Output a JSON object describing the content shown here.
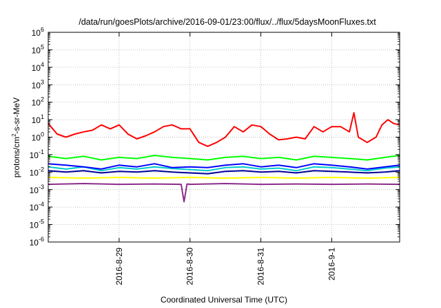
{
  "chart_data": {
    "type": "line",
    "title": "/data/run/goesPlots/archive/2016-09-01/23:00/flux/../flux/5daysMoonFluxes.txt",
    "xlabel": "Coordinated Universal Time (UTC)",
    "ylabel": {
      "base": "protons/cm",
      "sup": "2",
      "rest": "-s-sr-MeV"
    },
    "yscale": "log",
    "ylim_exp": [
      -6,
      6
    ],
    "ytick_base": "10",
    "yticks_exp": [
      "-6",
      "-5",
      "-4",
      "-3",
      "-2",
      "-1",
      "0",
      "1",
      "2",
      "3",
      "4",
      "5",
      "6"
    ],
    "xlim": [
      "2016-08-28T00:00",
      "2016-09-01T23:00"
    ],
    "xticks": [
      {
        "t": "2016-08-29T00:00",
        "label": "2016-8-29"
      },
      {
        "t": "2016-08-30T00:00",
        "label": "2016-8-30"
      },
      {
        "t": "2016-08-31T00:00",
        "label": "2016-8-31"
      },
      {
        "t": "2016-09-01T00:00",
        "label": "2016-9-1"
      }
    ],
    "grid": true,
    "series": [
      {
        "color": "#ff0000",
        "x": [
          "2016-08-28T00:00",
          "2016-08-28T03:00",
          "2016-08-28T06:00",
          "2016-08-28T09:00",
          "2016-08-28T12:00",
          "2016-08-28T15:00",
          "2016-08-28T18:00",
          "2016-08-28T21:00",
          "2016-08-29T00:00",
          "2016-08-29T03:00",
          "2016-08-29T06:00",
          "2016-08-29T09:00",
          "2016-08-29T12:00",
          "2016-08-29T15:00",
          "2016-08-29T18:00",
          "2016-08-29T21:00",
          "2016-08-30T00:00",
          "2016-08-30T03:00",
          "2016-08-30T06:00",
          "2016-08-30T09:00",
          "2016-08-30T12:00",
          "2016-08-30T15:00",
          "2016-08-30T18:00",
          "2016-08-30T21:00",
          "2016-08-31T00:00",
          "2016-08-31T03:00",
          "2016-08-31T06:00",
          "2016-08-31T09:00",
          "2016-08-31T12:00",
          "2016-08-31T15:00",
          "2016-08-31T18:00",
          "2016-08-31T21:00",
          "2016-09-01T00:00",
          "2016-09-01T03:00",
          "2016-09-01T06:00",
          "2016-09-01T07:30",
          "2016-09-01T09:00",
          "2016-09-01T12:00",
          "2016-09-01T15:00",
          "2016-09-01T17:00",
          "2016-09-01T19:00",
          "2016-09-01T21:00",
          "2016-09-01T23:00"
        ],
        "values": [
          6,
          1.5,
          1,
          1.5,
          2,
          2.5,
          5,
          3,
          5,
          1.5,
          0.8,
          1.2,
          2,
          4,
          5,
          3,
          3,
          0.5,
          0.3,
          0.5,
          1,
          4,
          2,
          5,
          4,
          1.5,
          0.7,
          0.8,
          1,
          0.8,
          4,
          2,
          4,
          4,
          2,
          25,
          1,
          0.5,
          1,
          5,
          10,
          6,
          5
        ]
      },
      {
        "color": "#00ff00",
        "x": [
          "2016-08-28T00:00",
          "2016-08-28T06:00",
          "2016-08-28T12:00",
          "2016-08-28T18:00",
          "2016-08-29T00:00",
          "2016-08-29T06:00",
          "2016-08-29T12:00",
          "2016-08-29T18:00",
          "2016-08-30T00:00",
          "2016-08-30T06:00",
          "2016-08-30T12:00",
          "2016-08-30T18:00",
          "2016-08-31T00:00",
          "2016-08-31T06:00",
          "2016-08-31T12:00",
          "2016-08-31T18:00",
          "2016-09-01T00:00",
          "2016-09-01T06:00",
          "2016-09-01T12:00",
          "2016-09-01T18:00",
          "2016-09-01T23:00"
        ],
        "values": [
          0.08,
          0.06,
          0.08,
          0.05,
          0.07,
          0.06,
          0.09,
          0.07,
          0.06,
          0.05,
          0.07,
          0.08,
          0.06,
          0.07,
          0.05,
          0.08,
          0.07,
          0.06,
          0.05,
          0.07,
          0.09
        ]
      },
      {
        "color": "#00cccc",
        "x": [
          "2016-08-28T00:00",
          "2016-08-28T06:00",
          "2016-08-28T12:00",
          "2016-08-28T18:00",
          "2016-08-29T00:00",
          "2016-08-29T06:00",
          "2016-08-29T12:00",
          "2016-08-29T18:00",
          "2016-08-30T00:00",
          "2016-08-30T06:00",
          "2016-08-30T12:00",
          "2016-08-30T18:00",
          "2016-08-31T00:00",
          "2016-08-31T06:00",
          "2016-08-31T12:00",
          "2016-08-31T18:00",
          "2016-09-01T00:00",
          "2016-09-01T06:00",
          "2016-09-01T12:00",
          "2016-09-01T18:00",
          "2016-09-01T23:00"
        ],
        "values": [
          0.02,
          0.015,
          0.02,
          0.012,
          0.018,
          0.015,
          0.02,
          0.016,
          0.014,
          0.012,
          0.018,
          0.02,
          0.015,
          0.017,
          0.012,
          0.02,
          0.018,
          0.015,
          0.012,
          0.017,
          0.02
        ]
      },
      {
        "color": "#0000ff",
        "x": [
          "2016-08-28T00:00",
          "2016-08-28T06:00",
          "2016-08-28T12:00",
          "2016-08-28T18:00",
          "2016-08-29T00:00",
          "2016-08-29T06:00",
          "2016-08-29T12:00",
          "2016-08-29T18:00",
          "2016-08-30T00:00",
          "2016-08-30T06:00",
          "2016-08-30T12:00",
          "2016-08-30T18:00",
          "2016-08-31T00:00",
          "2016-08-31T06:00",
          "2016-08-31T12:00",
          "2016-08-31T18:00",
          "2016-09-01T00:00",
          "2016-09-01T06:00",
          "2016-09-01T12:00",
          "2016-09-01T18:00",
          "2016-09-01T23:00"
        ],
        "values": [
          0.03,
          0.025,
          0.02,
          0.015,
          0.025,
          0.02,
          0.03,
          0.018,
          0.02,
          0.018,
          0.025,
          0.03,
          0.02,
          0.025,
          0.018,
          0.03,
          0.025,
          0.02,
          0.015,
          0.02,
          0.025
        ]
      },
      {
        "color": "#000099",
        "x": [
          "2016-08-28T00:00",
          "2016-08-28T06:00",
          "2016-08-28T12:00",
          "2016-08-28T18:00",
          "2016-08-29T00:00",
          "2016-08-29T06:00",
          "2016-08-29T12:00",
          "2016-08-29T18:00",
          "2016-08-30T00:00",
          "2016-08-30T06:00",
          "2016-08-30T12:00",
          "2016-08-30T18:00",
          "2016-08-31T00:00",
          "2016-08-31T06:00",
          "2016-08-31T12:00",
          "2016-08-31T18:00",
          "2016-09-01T00:00",
          "2016-09-01T06:00",
          "2016-09-01T12:00",
          "2016-09-01T18:00",
          "2016-09-01T23:00"
        ],
        "values": [
          0.012,
          0.01,
          0.012,
          0.009,
          0.011,
          0.01,
          0.012,
          0.01,
          0.009,
          0.008,
          0.011,
          0.012,
          0.01,
          0.011,
          0.009,
          0.012,
          0.011,
          0.01,
          0.009,
          0.01,
          0.012
        ]
      },
      {
        "color": "#ffff00",
        "x": [
          "2016-08-28T00:00",
          "2016-08-28T12:00",
          "2016-08-29T00:00",
          "2016-08-29T12:00",
          "2016-08-30T00:00",
          "2016-08-30T12:00",
          "2016-08-31T00:00",
          "2016-08-31T12:00",
          "2016-09-01T00:00",
          "2016-09-01T12:00",
          "2016-09-01T23:00"
        ],
        "values": [
          0.005,
          0.0045,
          0.005,
          0.0045,
          0.005,
          0.0045,
          0.005,
          0.0045,
          0.005,
          0.0045,
          0.005
        ]
      },
      {
        "color": "#8b2b8b",
        "x": [
          "2016-08-28T00:00",
          "2016-08-28T12:00",
          "2016-08-29T00:00",
          "2016-08-29T12:00",
          "2016-08-29T21:00",
          "2016-08-29T22:00",
          "2016-08-29T23:00",
          "2016-08-30T00:00",
          "2016-08-30T12:00",
          "2016-08-31T00:00",
          "2016-08-31T12:00",
          "2016-09-01T00:00",
          "2016-09-01T12:00",
          "2016-09-01T23:00"
        ],
        "values": [
          0.002,
          0.0022,
          0.002,
          0.0021,
          0.002,
          0.0002,
          0.0021,
          0.002,
          0.0022,
          0.002,
          0.0021,
          0.002,
          0.0021,
          0.002
        ]
      }
    ]
  }
}
